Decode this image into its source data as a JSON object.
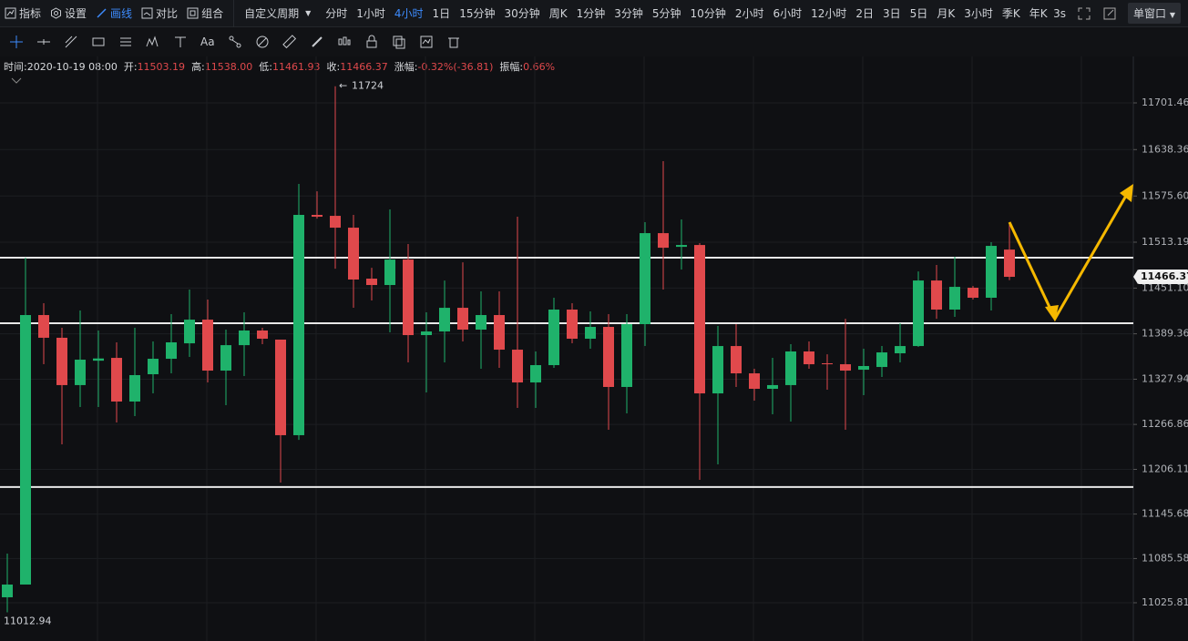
{
  "toolbar": {
    "tools": [
      "指标",
      "设置",
      "画线",
      "对比",
      "组合"
    ],
    "custom_period": "自定义周期",
    "periods": [
      "分时",
      "1小时",
      "4小时",
      "1日",
      "15分钟",
      "30分钟",
      "周K",
      "1分钟",
      "3分钟",
      "5分钟",
      "10分钟",
      "2小时",
      "6小时",
      "12小时",
      "2日",
      "3日",
      "5日",
      "月K",
      "3小时",
      "季K",
      "年K"
    ],
    "refresh": "3s",
    "window_mode": "单窗口",
    "font_tool": "Aa"
  },
  "info_bar": {
    "time_label": "时间:",
    "time": "2020-10-19 08:00",
    "open_label": "开:",
    "open": "11503.19",
    "high_label": "高:",
    "high": "11538.00",
    "low_label": "低:",
    "low": "11461.93",
    "close_label": "收:",
    "close": "11466.37",
    "change_label": "涨幅:",
    "change": "-0.32%(-36.81)",
    "amplitude_label": "振幅:",
    "amplitude": "0.66%"
  },
  "chart_data": {
    "type": "candlestick",
    "up_color": "#1fb26b",
    "down_color": "#e0494c",
    "grid": true,
    "ylim": [
      10974.1,
      11754.4
    ],
    "yticks": [
      11701.46,
      11638.36,
      {
        "value": 11575.6,
        "label": "11575.60"
      },
      11513.19,
      {
        "value": 11451.1,
        "label": "11451.10"
      },
      11389.36,
      11327.94,
      11266.86,
      11206.11,
      11145.68,
      11085.58,
      11025.81
    ],
    "hlines": [
      11492.2,
      11403.6,
      11182.2
    ],
    "candles": [
      {
        "open": 11033.2,
        "high": 11092.2,
        "low": 11012.94,
        "close": 11050.4
      },
      {
        "open": 11050.4,
        "high": 11492.2,
        "low": 11050.4,
        "close": 11414.7
      },
      {
        "open": 11414.7,
        "high": 11430.7,
        "low": 11348.2,
        "close": 11384.0
      },
      {
        "open": 11384.0,
        "high": 11397.5,
        "low": 11240.0,
        "close": 11320.0
      },
      {
        "open": 11320.0,
        "high": 11420.8,
        "low": 11290.4,
        "close": 11354.4
      },
      {
        "open": 11353.0,
        "high": 11393.8,
        "low": 11290.4,
        "close": 11356.0
      },
      {
        "open": 11356.8,
        "high": 11377.8,
        "low": 11269.5,
        "close": 11297.8
      },
      {
        "open": 11297.8,
        "high": 11397.5,
        "low": 11278.1,
        "close": 11333.5
      },
      {
        "open": 11334.7,
        "high": 11379.0,
        "low": 11308.8,
        "close": 11355.6
      },
      {
        "open": 11355.6,
        "high": 11415.9,
        "low": 11336.0,
        "close": 11377.8
      },
      {
        "open": 11376.5,
        "high": 11449.1,
        "low": 11358.1,
        "close": 11408.5
      },
      {
        "open": 11408.5,
        "high": 11435.6,
        "low": 11323.6,
        "close": 11339.6
      },
      {
        "open": 11339.6,
        "high": 11395.0,
        "low": 11292.8,
        "close": 11374.0
      },
      {
        "open": 11374.0,
        "high": 11418.4,
        "low": 11332.2,
        "close": 11393.8
      },
      {
        "open": 11393.8,
        "high": 11397.5,
        "low": 11375.3,
        "close": 11382.7
      },
      {
        "open": 11381.5,
        "high": 11381.5,
        "low": 11188.2,
        "close": 11252.3
      },
      {
        "open": 11252.3,
        "high": 11591.9,
        "low": 11246.0,
        "close": 11550.1
      },
      {
        "open": 11550.1,
        "high": 11582.0,
        "low": 11545.0,
        "close": 11547.6
      },
      {
        "open": 11548.8,
        "high": 11724,
        "low": 11477.4,
        "close": 11532.8
      },
      {
        "open": 11532.8,
        "high": 11550.1,
        "low": 11424.5,
        "close": 11462.7
      },
      {
        "open": 11463.9,
        "high": 11478.6,
        "low": 11434.4,
        "close": 11455.3
      },
      {
        "open": 11455.3,
        "high": 11557.5,
        "low": 11391.3,
        "close": 11489.7
      },
      {
        "open": 11489.7,
        "high": 11510.7,
        "low": 11350.7,
        "close": 11387.6
      },
      {
        "open": 11387.6,
        "high": 11418.4,
        "low": 11310.1,
        "close": 11392.5
      },
      {
        "open": 11392.5,
        "high": 11461.4,
        "low": 11350.7,
        "close": 11424.5
      },
      {
        "open": 11424.5,
        "high": 11486.0,
        "low": 11379.0,
        "close": 11395.0
      },
      {
        "open": 11395.0,
        "high": 11446.7,
        "low": 11342.1,
        "close": 11414.7
      },
      {
        "open": 11414.7,
        "high": 11446.7,
        "low": 11343.3,
        "close": 11367.9
      },
      {
        "open": 11367.9,
        "high": 11547.6,
        "low": 11289.2,
        "close": 11323.6
      },
      {
        "open": 11323.6,
        "high": 11365.5,
        "low": 11289.2,
        "close": 11347.0
      },
      {
        "open": 11347.0,
        "high": 11438.1,
        "low": 11343.3,
        "close": 11422.1
      },
      {
        "open": 11422.1,
        "high": 11430.7,
        "low": 11376.5,
        "close": 11382.7
      },
      {
        "open": 11382.7,
        "high": 11419.6,
        "low": 11369.1,
        "close": 11398.7
      },
      {
        "open": 11398.7,
        "high": 11415.9,
        "low": 11259.6,
        "close": 11317.5
      },
      {
        "open": 11317.5,
        "high": 11415.9,
        "low": 11281.8,
        "close": 11402.4
      },
      {
        "open": 11402.4,
        "high": 11540.2,
        "low": 11372.8,
        "close": 11525.4
      },
      {
        "open": 11525.4,
        "high": 11622.7,
        "low": 11449.1,
        "close": 11505.7
      },
      {
        "open": 11506.9,
        "high": 11543.9,
        "low": 11476.2,
        "close": 11509.4
      },
      {
        "open": 11509.4,
        "high": 11511.9,
        "low": 11191.9,
        "close": 11308.8
      },
      {
        "open": 11308.8,
        "high": 11400.0,
        "low": 11212.9,
        "close": 11372.8
      },
      {
        "open": 11372.8,
        "high": 11402.4,
        "low": 11317.5,
        "close": 11335.9
      },
      {
        "open": 11335.9,
        "high": 11342.1,
        "low": 11299.0,
        "close": 11315.0
      },
      {
        "open": 11315.0,
        "high": 11356.8,
        "low": 11280.5,
        "close": 11320.0
      },
      {
        "open": 11320.0,
        "high": 11375.3,
        "low": 11270.7,
        "close": 11365.5
      },
      {
        "open": 11365.5,
        "high": 11379.0,
        "low": 11342.1,
        "close": 11348.2
      },
      {
        "open": 11349.5,
        "high": 11361.7,
        "low": 11313.8,
        "close": 11348.2
      },
      {
        "open": 11348.2,
        "high": 11409.7,
        "low": 11259.6,
        "close": 11339.6
      },
      {
        "open": 11340.8,
        "high": 11369.1,
        "low": 11306.4,
        "close": 11345.8
      },
      {
        "open": 11344.5,
        "high": 11372.8,
        "low": 11331.0,
        "close": 11364.2
      },
      {
        "open": 11363.0,
        "high": 11403.6,
        "low": 11350.7,
        "close": 11372.8
      },
      {
        "open": 11372.8,
        "high": 11473.7,
        "low": 11371.6,
        "close": 11461.4
      },
      {
        "open": 11461.4,
        "high": 11482.4,
        "low": 11409.7,
        "close": 11422.1
      },
      {
        "open": 11422.1,
        "high": 11493.5,
        "low": 11412.2,
        "close": 11452.8
      },
      {
        "open": 11451.6,
        "high": 11454.0,
        "low": 11435.6,
        "close": 11438.1
      },
      {
        "open": 11438.1,
        "high": 11513.1,
        "low": 11420.8,
        "close": 11508.2
      },
      {
        "open": 11503.19,
        "high": 11538.0,
        "low": 11461.93,
        "close": 11466.37
      }
    ]
  }
}
